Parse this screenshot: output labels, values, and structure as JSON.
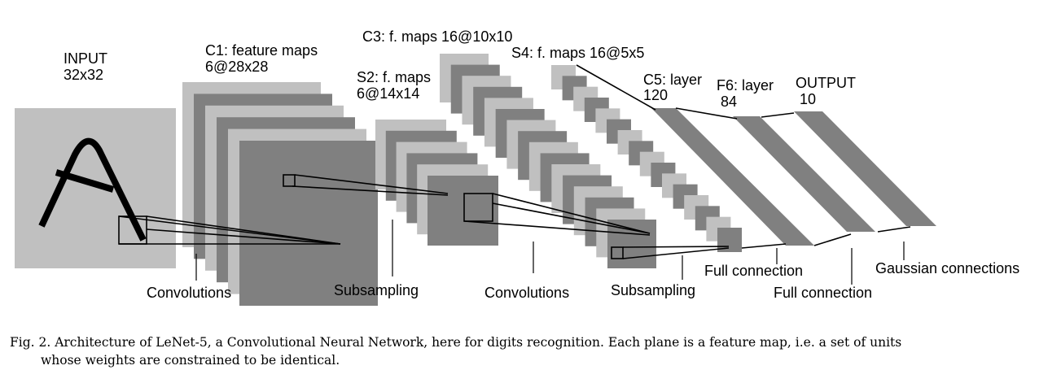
{
  "colors": {
    "light_plane": "#c0c0c0",
    "dark_plane": "#808080",
    "line": "#000000"
  },
  "layers": {
    "input": {
      "name": "INPUT",
      "size": "32x32"
    },
    "c1": {
      "name": "C1: feature maps",
      "size": "6@28x28"
    },
    "s2": {
      "name": "S2: f. maps",
      "size": "6@14x14"
    },
    "c3": {
      "name": "C3: f. maps 16@10x10"
    },
    "s4": {
      "name": "S4: f. maps 16@5x5"
    },
    "c5": {
      "name": "C5: layer",
      "size": "120"
    },
    "f6": {
      "name": "F6: layer",
      "size": "84"
    },
    "output": {
      "name": "OUTPUT",
      "size": "10"
    }
  },
  "operations": {
    "conv1": "Convolutions",
    "sub1": "Subsampling",
    "conv2": "Convolutions",
    "sub2": "Subsampling",
    "full1": "Full connection",
    "full2": "Full connection",
    "gauss": "Gaussian connections"
  },
  "caption": {
    "line1": "Fig. 2.   Architecture of LeNet-5, a Convolutional Neural Network, here for digits recognition. Each plane is a feature map, i.e. a set of units",
    "line2": "whose weights are constrained to be identical."
  }
}
